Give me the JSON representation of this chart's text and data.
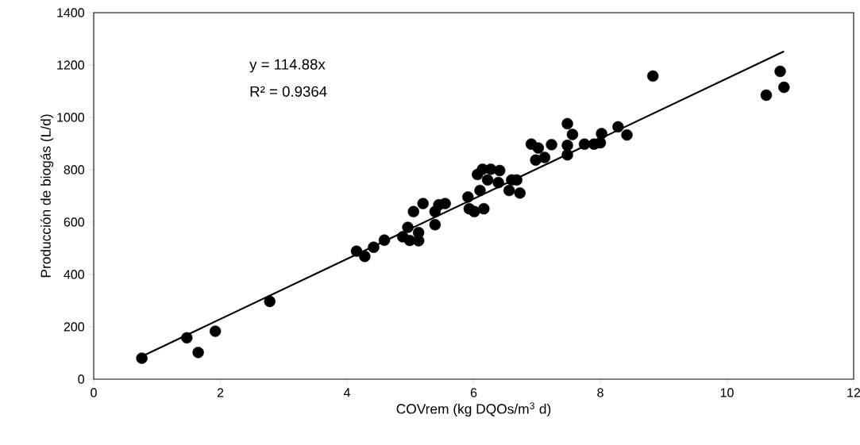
{
  "chart_data": {
    "type": "scatter",
    "xlabel": "COVrem (kg DQOs/m$^{3}$ d)",
    "ylabel": "Producción de biogás (L/d)",
    "xlim": [
      0,
      12
    ],
    "ylim": [
      0,
      1400
    ],
    "xticks": [
      0,
      2,
      4,
      6,
      8,
      10,
      12
    ],
    "yticks": [
      0,
      200,
      400,
      600,
      800,
      1000,
      1200,
      1400
    ],
    "grid": false,
    "annotations": [
      "y = 114.88x",
      "R² = 0.9364"
    ],
    "series": [
      {
        "marker": "circle",
        "color": "#000000",
        "x": [
          0.76,
          1.47,
          1.65,
          1.92,
          2.78,
          4.15,
          4.28,
          4.42,
          4.59,
          4.88,
          4.96,
          4.99,
          5.13,
          5.13,
          5.05,
          5.2,
          5.39,
          5.39,
          5.45,
          5.55,
          5.91,
          5.93,
          6.01,
          6.1,
          6.16,
          6.06,
          6.14,
          6.22,
          6.27,
          6.41,
          6.39,
          6.56,
          6.68,
          6.73,
          6.6,
          7.48,
          7.56,
          6.91,
          7.02,
          7.23,
          6.98,
          7.12,
          7.48,
          7.48,
          7.75,
          7.9,
          8.02,
          8.0,
          8.28,
          8.42,
          8.83,
          10.84,
          10.9,
          10.62
        ],
        "values": [
          80,
          158,
          102,
          183,
          297,
          489,
          469,
          504,
          531,
          544,
          580,
          530,
          560,
          529,
          640,
          671,
          590,
          640,
          666,
          671,
          696,
          651,
          640,
          721,
          651,
          782,
          802,
          761,
          802,
          797,
          751,
          721,
          761,
          711,
          761,
          976,
          935,
          898,
          883,
          896,
          837,
          847,
          893,
          857,
          898,
          898,
          938,
          903,
          964,
          933,
          1158,
          1176,
          1115,
          1085
        ]
      },
      {
        "type": "line",
        "color": "#000000",
        "line_style": "solid",
        "x": [
          0.76,
          10.9
        ],
        "values": [
          87,
          1252
        ]
      }
    ]
  }
}
